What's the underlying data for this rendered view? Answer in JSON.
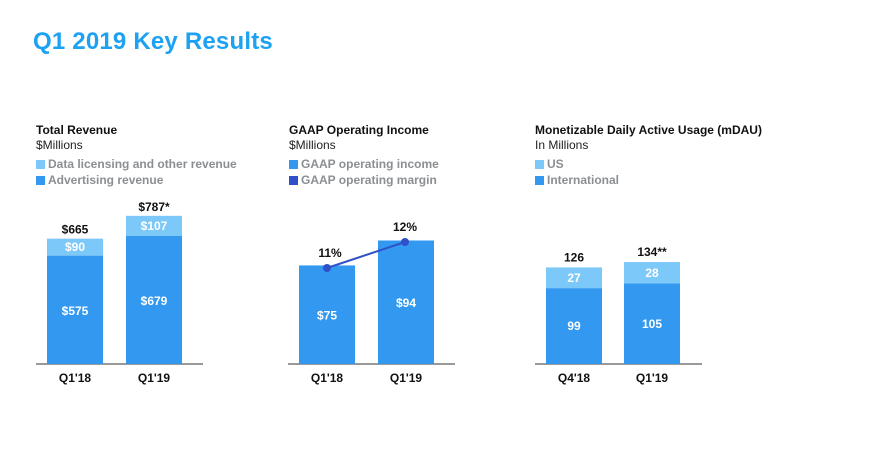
{
  "page": {
    "title": "Q1 2019 Key Results"
  },
  "colors": {
    "title": "#1da1f2",
    "dark_segment": "#3399f0",
    "light_segment": "#7cc8f8",
    "margin_line": "#2f50c8",
    "axis": "#333333"
  },
  "chart_data": [
    {
      "type": "bar",
      "title": "Total Revenue",
      "unit": "$Millions",
      "categories": [
        "Q1'18",
        "Q1'19"
      ],
      "series": [
        {
          "name": "Data licensing and other revenue",
          "values": [
            90,
            107
          ],
          "labels": [
            "$90",
            "$107"
          ]
        },
        {
          "name": "Advertising revenue",
          "values": [
            575,
            679
          ],
          "labels": [
            "$575",
            "$679"
          ]
        }
      ],
      "totals": [
        "$665",
        "$787*"
      ],
      "stacked": true
    },
    {
      "type": "bar",
      "title": "GAAP Operating Income",
      "unit": "$Millions",
      "categories": [
        "Q1'18",
        "Q1'19"
      ],
      "series": [
        {
          "name": "GAAP operating income",
          "values": [
            75,
            94
          ],
          "labels": [
            "$75",
            "$94"
          ]
        },
        {
          "name": "GAAP operating margin",
          "type": "line",
          "values": [
            11,
            12
          ],
          "labels": [
            "11%",
            "12%"
          ]
        }
      ]
    },
    {
      "type": "bar",
      "title": "Monetizable Daily Active Usage (mDAU)",
      "unit": "In Millions",
      "categories": [
        "Q4'18",
        "Q1'19"
      ],
      "series": [
        {
          "name": "US",
          "values": [
            27,
            28
          ],
          "labels": [
            "27",
            "28"
          ]
        },
        {
          "name": "International",
          "values": [
            99,
            105
          ],
          "labels": [
            "99",
            "105"
          ]
        }
      ],
      "totals": [
        "126",
        "134**"
      ],
      "stacked": true
    }
  ]
}
